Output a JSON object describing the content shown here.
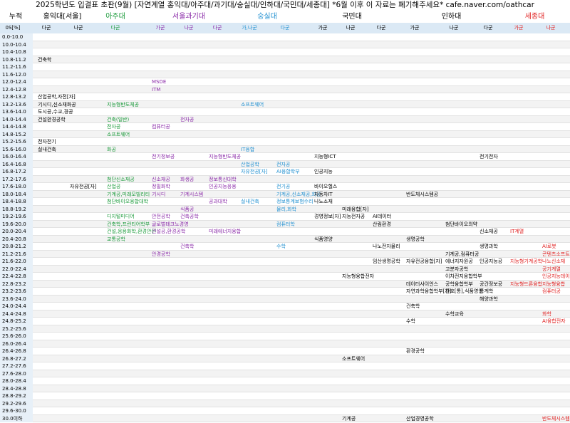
{
  "header": {
    "title": "2025학년도 입결표 초판(9월) [자연계열 홍익대/아주대/과기대/숭실대/인하대/국민대/세종대] *6월 이후 이 자료는 폐기해주세요* cafe.naver.com/oathcar",
    "corner_top": "누적",
    "corner": "0S[%]",
    "universities": [
      {
        "name": "홍익대[서울]",
        "color": "#000000",
        "columns": [
          "다군",
          "나군"
        ]
      },
      {
        "name": "아주대",
        "color": "#1a9a3a",
        "columns": [
          "다군"
        ]
      },
      {
        "name": "서울과기대",
        "color": "#8a2aa8",
        "columns": [
          "가군",
          "나군",
          "다군"
        ]
      },
      {
        "name": "숭실대",
        "color": "#1f8fd0",
        "columns": [
          "가,나군",
          "다군"
        ]
      },
      {
        "name": "국민대",
        "color": "#000000",
        "columns": [
          "가군",
          "나군",
          "다군"
        ]
      },
      {
        "name": "인하대",
        "color": "#000000",
        "columns": [
          "가군",
          "나군",
          "다군"
        ]
      },
      {
        "name": "세종대",
        "color": "#e02020",
        "columns": [
          "가군",
          "나군"
        ]
      }
    ]
  },
  "table": {
    "rows": [
      {
        "range": "0.0-10.0"
      },
      {
        "range": "10.0-10.4"
      },
      {
        "range": "10.4-10.8"
      },
      {
        "range": "10.8-11.2",
        "cells": [
          {
            "col": 0,
            "text": "건축학"
          }
        ]
      },
      {
        "range": "11.2-11.6"
      },
      {
        "range": "11.6-12.0"
      },
      {
        "range": "12.0-12.4",
        "cells": [
          {
            "col": 3,
            "text": "MSDE"
          }
        ]
      },
      {
        "range": "12.4-12.8",
        "cells": [
          {
            "col": 3,
            "text": "ITM"
          }
        ]
      },
      {
        "range": "12.8-13.2",
        "cells": [
          {
            "col": 0,
            "text": "산업공학,자전[자]"
          }
        ]
      },
      {
        "range": "13.2-13.6",
        "cells": [
          {
            "col": 0,
            "text": "기시디,신소재화공"
          },
          {
            "col": 2,
            "text": "지능형반도체공"
          },
          {
            "col": 6,
            "text": "소프트웨어"
          }
        ]
      },
      {
        "range": "13.6-14.0",
        "cells": [
          {
            "col": 0,
            "text": "도시공,수교,경공"
          }
        ]
      },
      {
        "range": "14.0-14.4",
        "cells": [
          {
            "col": 0,
            "text": "건설환경공학"
          },
          {
            "col": 2,
            "text": "건축(일반)"
          },
          {
            "col": 4,
            "text": "전자공"
          }
        ]
      },
      {
        "range": "14.4-14.8",
        "cells": [
          {
            "col": 2,
            "text": "전자공"
          },
          {
            "col": 3,
            "text": "컴퓨터공"
          }
        ]
      },
      {
        "range": "14.8-15.2",
        "cells": [
          {
            "col": 2,
            "text": "소프트웨어"
          }
        ]
      },
      {
        "range": "15.2-15.6",
        "cells": [
          {
            "col": 0,
            "text": "전자전기"
          }
        ]
      },
      {
        "range": "15.6-16.0",
        "cells": [
          {
            "col": 0,
            "text": "실내건축"
          },
          {
            "col": 2,
            "text": "화공"
          },
          {
            "col": 6,
            "text": "IT융합"
          }
        ]
      },
      {
        "range": "16.0-16.4",
        "cells": [
          {
            "col": 3,
            "text": "전기정보공"
          },
          {
            "col": 5,
            "text": "지능형반도체공"
          },
          {
            "col": 8,
            "text": "지능형ICT"
          },
          {
            "col": 13,
            "text": "전기전자"
          }
        ]
      },
      {
        "range": "16.4-16.8",
        "cells": [
          {
            "col": 6,
            "text": "산업공학"
          },
          {
            "col": 7,
            "text": "전자공"
          }
        ]
      },
      {
        "range": "16.8-17.2",
        "cells": [
          {
            "col": 6,
            "text": "자유전공[자]"
          },
          {
            "col": 7,
            "text": "AI융합학부"
          },
          {
            "col": 8,
            "text": "인공지능"
          }
        ]
      },
      {
        "range": "17.2-17.6",
        "cells": [
          {
            "col": 2,
            "text": "첨단신소재공"
          },
          {
            "col": 3,
            "text": "신소재공"
          },
          {
            "col": 4,
            "text": "화생공"
          },
          {
            "col": 5,
            "text": "정보통신대학"
          }
        ]
      },
      {
        "range": "17.6-18.0",
        "cells": [
          {
            "col": 1,
            "text": "자유전공[자]"
          },
          {
            "col": 2,
            "text": "산업공"
          },
          {
            "col": 3,
            "text": "정밀화학"
          },
          {
            "col": 5,
            "text": "인공지능응용"
          },
          {
            "col": 7,
            "text": "전기공"
          },
          {
            "col": 8,
            "text": "바이오헬스"
          }
        ]
      },
      {
        "range": "18.0-18.4",
        "cells": [
          {
            "col": 2,
            "text": "기계공,미래모빌리티"
          },
          {
            "col": 3,
            "text": "기시디"
          },
          {
            "col": 4,
            "text": "기계시스템"
          },
          {
            "col": 7,
            "text": "기계공,신소재공,화공"
          },
          {
            "col": 8,
            "text": "자동차IT"
          },
          {
            "col": 11,
            "text": "반도체시스템공"
          }
        ]
      },
      {
        "range": "18.4-18.8",
        "cells": [
          {
            "col": 2,
            "text": "첨단바이오융합대학"
          },
          {
            "col": 5,
            "text": "공과대학"
          },
          {
            "col": 6,
            "text": "실내건축"
          },
          {
            "col": 7,
            "text": "정보통계보험수리"
          },
          {
            "col": 8,
            "text": "나노소재"
          }
        ]
      },
      {
        "range": "18.8-19.2",
        "cells": [
          {
            "col": 4,
            "text": "식품공"
          },
          {
            "col": 7,
            "text": "물리,화학"
          },
          {
            "col": 9,
            "text": "미래융합[자]"
          }
        ]
      },
      {
        "range": "19.2-19.6",
        "cells": [
          {
            "col": 2,
            "text": "디지털미디어"
          },
          {
            "col": 3,
            "text": "안전공학"
          },
          {
            "col": 4,
            "text": "건축공학"
          },
          {
            "col": 8,
            "text": "경영정보[자]"
          },
          {
            "col": 9,
            "text": "지능전자공"
          },
          {
            "col": 10,
            "text": "AI데이터"
          }
        ]
      },
      {
        "range": "19.6-20.0",
        "cells": [
          {
            "col": 2,
            "text": "건축학,프런티어학부"
          },
          {
            "col": 3,
            "text": "글로벌테크노경영"
          },
          {
            "col": 7,
            "text": "컴퓨터학"
          },
          {
            "col": 10,
            "text": "산림환경"
          },
          {
            "col": 12,
            "text": "첨단바이오의약"
          }
        ]
      },
      {
        "range": "20.0-20.4",
        "cells": [
          {
            "col": 2,
            "text": "건설,응용화학,환경안전"
          },
          {
            "col": 3,
            "text": "건설공,환경공학"
          },
          {
            "col": 5,
            "text": "미래에너지융합"
          },
          {
            "col": 13,
            "text": "신소재공"
          },
          {
            "col": 14,
            "text": "IT계열"
          }
        ]
      },
      {
        "range": "20.4-20.8",
        "cells": [
          {
            "col": 2,
            "text": "교통공학"
          },
          {
            "col": 8,
            "text": "식품영양"
          },
          {
            "col": 11,
            "text": "생명공학"
          }
        ]
      },
      {
        "range": "20.8-21.2",
        "cells": [
          {
            "col": 4,
            "text": "건축학"
          },
          {
            "col": 7,
            "text": "수학"
          },
          {
            "col": 10,
            "text": "나노전자물리"
          },
          {
            "col": 13,
            "text": "생명과학"
          },
          {
            "col": 15,
            "text": "AI로봇"
          }
        ]
      },
      {
        "range": "21.2-21.6",
        "cells": [
          {
            "col": 3,
            "text": "안경공학"
          },
          {
            "col": 12,
            "text": "기계공,컴퓨터공"
          },
          {
            "col": 15,
            "text": "콘텐츠소프트웨어"
          }
        ]
      },
      {
        "range": "21.6-22.0",
        "cells": [
          {
            "col": 10,
            "text": "임산생명공학"
          },
          {
            "col": 11,
            "text": "자유전공융합[자]"
          },
          {
            "col": 12,
            "text": "에너지자원공"
          },
          {
            "col": 13,
            "text": "인공지능공"
          },
          {
            "col": 14,
            "text": "지능형기계공학"
          },
          {
            "col": 15,
            "text": "나노신소재"
          }
        ]
      },
      {
        "range": "22.0-22.4",
        "cells": [
          {
            "col": 12,
            "text": "고분자공학"
          },
          {
            "col": 15,
            "text": "공기계열"
          }
        ]
      },
      {
        "range": "22.4-22.8",
        "cells": [
          {
            "col": 9,
            "text": "지능형융합전자"
          },
          {
            "col": 12,
            "text": "이차전지융합학부"
          },
          {
            "col": 15,
            "text": "인공지능데이터"
          }
        ]
      },
      {
        "range": "22.8-23.2",
        "cells": [
          {
            "col": 11,
            "text": "데이터사이언스"
          },
          {
            "col": 12,
            "text": "공학융합학부"
          },
          {
            "col": 13,
            "text": "공간정보공"
          },
          {
            "col": 14,
            "text": "지능형드론융합"
          },
          {
            "col": 15,
            "text": "지능형융합"
          }
        ]
      },
      {
        "range": "23.2-23.6",
        "cells": [
          {
            "col": 11,
            "text": "자연과학융합학부[자]"
          },
          {
            "col": 12,
            "text": "간호[통],식품영양"
          },
          {
            "col": 13,
            "text": "통계학"
          },
          {
            "col": 15,
            "text": "컴퓨터공"
          }
        ]
      },
      {
        "range": "23.6-24.0",
        "cells": [
          {
            "col": 13,
            "text": "해양과학"
          }
        ]
      },
      {
        "range": "24.0-24.4",
        "cells": [
          {
            "col": 11,
            "text": "건축학"
          }
        ]
      },
      {
        "range": "24.4-24.8",
        "cells": [
          {
            "col": 12,
            "text": "수학교육"
          },
          {
            "col": 15,
            "text": "화학"
          }
        ]
      },
      {
        "range": "24.8-25.2",
        "cells": [
          {
            "col": 11,
            "text": "수학"
          },
          {
            "col": 15,
            "text": "AI융합전자"
          }
        ]
      },
      {
        "range": "25.2-25.6"
      },
      {
        "range": "25.6-26.0"
      },
      {
        "range": "26.0-26.4"
      },
      {
        "range": "26.4-26.8",
        "cells": [
          {
            "col": 11,
            "text": "환경공학"
          }
        ]
      },
      {
        "range": "26.8-27.2",
        "cells": [
          {
            "col": 9,
            "text": "소프트웨어"
          }
        ]
      },
      {
        "range": "27.2-27.6"
      },
      {
        "range": "27.6-28.0"
      },
      {
        "range": "28.0-28.4"
      },
      {
        "range": "28.4-28.8"
      },
      {
        "range": "28.8-29.2"
      },
      {
        "range": "29.2-29.6"
      },
      {
        "range": "29.6-30.0"
      },
      {
        "range": "30.0이하",
        "cells": [
          {
            "col": 9,
            "text": "기계공"
          },
          {
            "col": 11,
            "text": "산업경영공학"
          },
          {
            "col": 15,
            "text": "반도체시스템공학"
          }
        ]
      }
    ]
  }
}
